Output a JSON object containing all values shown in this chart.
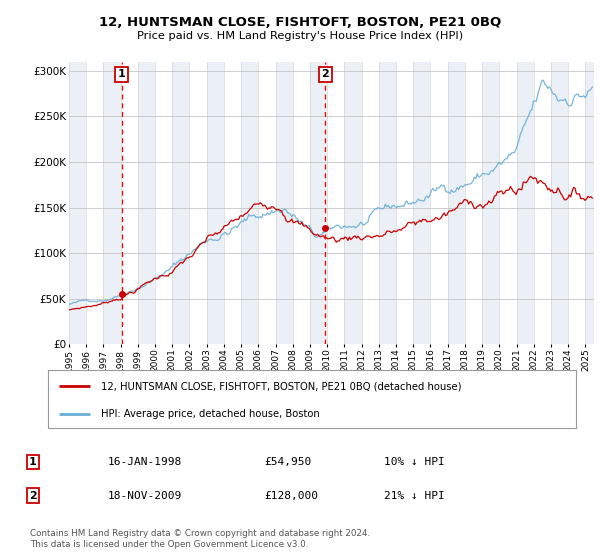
{
  "title": "12, HUNTSMAN CLOSE, FISHTOFT, BOSTON, PE21 0BQ",
  "subtitle": "Price paid vs. HM Land Registry's House Price Index (HPI)",
  "ylabel_ticks": [
    "£0",
    "£50K",
    "£100K",
    "£150K",
    "£200K",
    "£250K",
    "£300K"
  ],
  "ytick_values": [
    0,
    50000,
    100000,
    150000,
    200000,
    250000,
    300000
  ],
  "ylim": [
    0,
    310000
  ],
  "xlim_start": 1995.0,
  "xlim_end": 2025.5,
  "sale1_date_x": 1998.05,
  "sale1_price": 54950,
  "sale1_label": "16-JAN-1998",
  "sale1_amount": "£54,950",
  "sale1_pct": "10% ↓ HPI",
  "sale2_date_x": 2009.9,
  "sale2_price": 128000,
  "sale2_label": "18-NOV-2009",
  "sale2_amount": "£128,000",
  "sale2_pct": "21% ↓ HPI",
  "hpi_color": "#6baed6",
  "price_color": "#cc0000",
  "dashed_color": "#ff0000",
  "bg_color": "#dce6f1",
  "plot_bg": "#ffffff",
  "legend_line1": "12, HUNTSMAN CLOSE, FISHTOFT, BOSTON, PE21 0BQ (detached house)",
  "legend_line2": "HPI: Average price, detached house, Boston",
  "footnote": "Contains HM Land Registry data © Crown copyright and database right 2024.\nThis data is licensed under the Open Government Licence v3.0."
}
